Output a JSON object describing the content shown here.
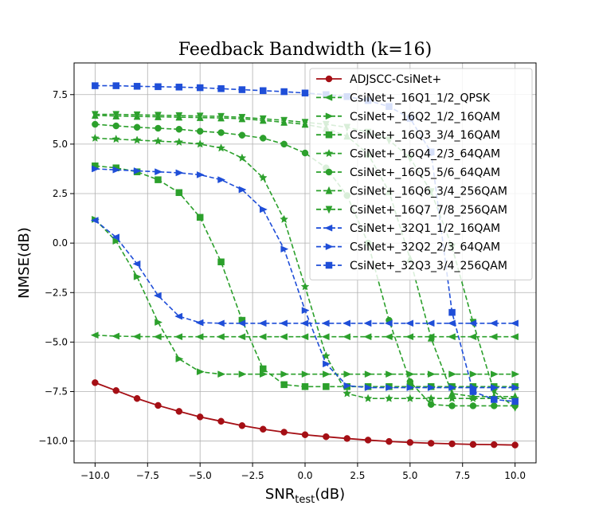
{
  "chart_data": {
    "type": "line",
    "title": "Feedback Bandwidth (k=16)",
    "xlabel_main": "SNR",
    "xlabel_sub": "test",
    "xlabel_unit": "(dB)",
    "ylabel": "NMSE(dB)",
    "xlim": [
      -11,
      11
    ],
    "ylim": [
      -11.1,
      9.1
    ],
    "x": [
      -10,
      -9,
      -8,
      -7,
      -6,
      -5,
      -4,
      -3,
      -2,
      -1,
      0,
      1,
      2,
      3,
      4,
      5,
      6,
      7,
      8,
      9,
      10
    ],
    "x_ticks": [
      -10,
      -7.5,
      -5,
      -2.5,
      0,
      2.5,
      5,
      7.5,
      10
    ],
    "x_tick_labels": [
      "−10.0",
      "−7.5",
      "−5.0",
      "−2.5",
      "0.0",
      "2.5",
      "5.0",
      "7.5",
      "10.0"
    ],
    "y_ticks": [
      -10,
      -7.5,
      -5,
      -2.5,
      0,
      2.5,
      5,
      7.5
    ],
    "y_tick_labels": [
      "−10.0",
      "−7.5",
      "−5.0",
      "−2.5",
      "0.0",
      "2.5",
      "5.0",
      "7.5"
    ],
    "grid": true,
    "legend_position": "top-right",
    "series": [
      {
        "name": "ADJSCC-CsiNet+",
        "color": "#a50f15",
        "marker": "circle",
        "dashed": false,
        "values": [
          -7.05,
          -7.45,
          -7.85,
          -8.2,
          -8.5,
          -8.78,
          -9.0,
          -9.22,
          -9.4,
          -9.55,
          -9.68,
          -9.78,
          -9.87,
          -9.95,
          -10.02,
          -10.07,
          -10.11,
          -10.14,
          -10.17,
          -10.18,
          -10.2
        ]
      },
      {
        "name": "CsiNet+_16Q1_1/2_QPSK",
        "color": "#2ca02c",
        "marker": "triangle-left",
        "dashed": true,
        "values": [
          -4.65,
          -4.7,
          -4.72,
          -4.73,
          -4.73,
          -4.73,
          -4.73,
          -4.73,
          -4.73,
          -4.73,
          -4.73,
          -4.73,
          -4.73,
          -4.73,
          -4.73,
          -4.73,
          -4.73,
          -4.73,
          -4.73,
          -4.73,
          -4.73
        ]
      },
      {
        "name": "CsiNet+_16Q2_1/2_16QAM",
        "color": "#2ca02c",
        "marker": "triangle-right",
        "dashed": true,
        "values": [
          1.2,
          0.1,
          -1.7,
          -4.0,
          -5.85,
          -6.5,
          -6.62,
          -6.62,
          -6.62,
          -6.62,
          -6.62,
          -6.62,
          -6.62,
          -6.62,
          -6.62,
          -6.62,
          -6.62,
          -6.62,
          -6.62,
          -6.62,
          -6.62
        ]
      },
      {
        "name": "CsiNet+_16Q3_3/4_16QAM",
        "color": "#2ca02c",
        "marker": "square",
        "dashed": true,
        "values": [
          3.9,
          3.8,
          3.6,
          3.2,
          2.55,
          1.3,
          -0.95,
          -3.9,
          -6.35,
          -7.15,
          -7.25,
          -7.25,
          -7.25,
          -7.25,
          -7.25,
          -7.25,
          -7.25,
          -7.25,
          -7.25,
          -7.25,
          -7.25
        ]
      },
      {
        "name": "CsiNet+_16Q4_2/3_64QAM",
        "color": "#2ca02c",
        "marker": "star",
        "dashed": true,
        "values": [
          5.3,
          5.25,
          5.2,
          5.15,
          5.1,
          5.0,
          4.8,
          4.3,
          3.3,
          1.2,
          -2.2,
          -5.7,
          -7.6,
          -7.85,
          -7.85,
          -7.85,
          -7.85,
          -7.85,
          -7.85,
          -7.85,
          -7.85
        ]
      },
      {
        "name": "CsiNet+_16Q5_5/6_64QAM",
        "color": "#2ca02c",
        "marker": "circle",
        "dashed": true,
        "values": [
          6.0,
          5.92,
          5.85,
          5.8,
          5.75,
          5.65,
          5.58,
          5.45,
          5.3,
          5.0,
          4.55,
          3.8,
          2.4,
          0.0,
          -3.9,
          -7.0,
          -8.15,
          -8.22,
          -8.22,
          -8.22,
          -8.22
        ]
      },
      {
        "name": "CsiNet+_16Q6_3/4_256QAM",
        "color": "#2ca02c",
        "marker": "triangle-up",
        "dashed": true,
        "values": [
          6.45,
          6.42,
          6.4,
          6.38,
          6.36,
          6.34,
          6.32,
          6.28,
          6.2,
          6.1,
          6.0,
          5.8,
          5.4,
          4.5,
          2.6,
          -0.8,
          -4.8,
          -7.6,
          -7.75,
          -7.75,
          -7.75
        ]
      },
      {
        "name": "CsiNet+_16Q7_7/8_256QAM",
        "color": "#2ca02c",
        "marker": "triangle-down",
        "dashed": true,
        "values": [
          6.5,
          6.5,
          6.48,
          6.46,
          6.44,
          6.42,
          6.4,
          6.35,
          6.28,
          6.2,
          6.1,
          6.0,
          5.85,
          5.6,
          5.2,
          4.3,
          2.6,
          -0.2,
          -4.0,
          -7.5,
          -8.3
        ]
      },
      {
        "name": "CsiNet+_32Q1_1/2_16QAM",
        "color": "#1f4ed8",
        "marker": "triangle-left",
        "dashed": true,
        "values": [
          1.15,
          0.3,
          -1.05,
          -2.65,
          -3.7,
          -4.02,
          -4.05,
          -4.05,
          -4.05,
          -4.05,
          -4.05,
          -4.05,
          -4.05,
          -4.05,
          -4.05,
          -4.05,
          -4.05,
          -4.05,
          -4.05,
          -4.05,
          -4.05
        ]
      },
      {
        "name": "CsiNet+_32Q2_2/3_64QAM",
        "color": "#1f4ed8",
        "marker": "triangle-right",
        "dashed": true,
        "values": [
          3.75,
          3.7,
          3.65,
          3.6,
          3.55,
          3.45,
          3.2,
          2.7,
          1.7,
          -0.3,
          -3.4,
          -6.1,
          -7.2,
          -7.3,
          -7.3,
          -7.3,
          -7.3,
          -7.3,
          -7.3,
          -7.3,
          -7.3
        ]
      },
      {
        "name": "CsiNet+_32Q3_3/4_256QAM",
        "color": "#1f4ed8",
        "marker": "square",
        "dashed": true,
        "values": [
          7.95,
          7.95,
          7.92,
          7.9,
          7.88,
          7.85,
          7.8,
          7.75,
          7.7,
          7.65,
          7.58,
          7.5,
          7.4,
          7.2,
          6.9,
          6.3,
          4.6,
          -3.5,
          -7.5,
          -7.9,
          -8.0
        ]
      }
    ]
  }
}
